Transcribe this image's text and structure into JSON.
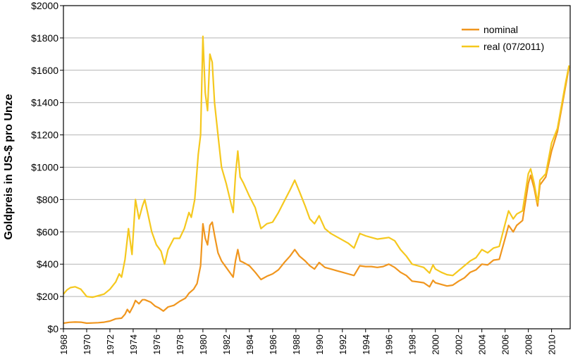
{
  "chart_data": {
    "type": "line",
    "title": "",
    "xlabel": "",
    "ylabel": "Goldpreis in US-$ pro Unze",
    "xlim": [
      1968,
      2011.6
    ],
    "ylim": [
      0,
      2000
    ],
    "grid": true,
    "legend_position": "top-right",
    "y_ticks": [
      {
        "value": 0,
        "label": "$0"
      },
      {
        "value": 200,
        "label": "$200"
      },
      {
        "value": 400,
        "label": "$400"
      },
      {
        "value": 600,
        "label": "$600"
      },
      {
        "value": 800,
        "label": "$800"
      },
      {
        "value": 1000,
        "label": "$1000"
      },
      {
        "value": 1200,
        "label": "$1200"
      },
      {
        "value": 1400,
        "label": "$1400"
      },
      {
        "value": 1600,
        "label": "$1600"
      },
      {
        "value": 1800,
        "label": "$1800"
      },
      {
        "value": 2000,
        "label": "$2000"
      }
    ],
    "x_ticks": [
      {
        "value": 1968,
        "label": "1968"
      },
      {
        "value": 1970,
        "label": "1970"
      },
      {
        "value": 1972,
        "label": "1972"
      },
      {
        "value": 1974,
        "label": "1974"
      },
      {
        "value": 1976,
        "label": "1976"
      },
      {
        "value": 1978,
        "label": "1978"
      },
      {
        "value": 1980,
        "label": "1980"
      },
      {
        "value": 1982,
        "label": "1982"
      },
      {
        "value": 1984,
        "label": "1984"
      },
      {
        "value": 1986,
        "label": "1986"
      },
      {
        "value": 1988,
        "label": "1988"
      },
      {
        "value": 1990,
        "label": "1990"
      },
      {
        "value": 1992,
        "label": "1992"
      },
      {
        "value": 1994,
        "label": "1994"
      },
      {
        "value": 1996,
        "label": "1996"
      },
      {
        "value": 1998,
        "label": "1998"
      },
      {
        "value": 2000,
        "label": "2000"
      },
      {
        "value": 2002,
        "label": "2002"
      },
      {
        "value": 2004,
        "label": "2004"
      },
      {
        "value": 2006,
        "label": "2006"
      },
      {
        "value": 2008,
        "label": "2008"
      },
      {
        "value": 2010,
        "label": "2010"
      }
    ],
    "series": [
      {
        "name": "nominal",
        "color": "#f0961e",
        "points": [
          [
            1968.0,
            35
          ],
          [
            1968.5,
            40
          ],
          [
            1969.0,
            42
          ],
          [
            1969.5,
            41
          ],
          [
            1970.0,
            35
          ],
          [
            1970.5,
            36
          ],
          [
            1971.0,
            38
          ],
          [
            1971.5,
            41
          ],
          [
            1972.0,
            48
          ],
          [
            1972.5,
            62
          ],
          [
            1973.0,
            66
          ],
          [
            1973.3,
            90
          ],
          [
            1973.5,
            120
          ],
          [
            1973.7,
            100
          ],
          [
            1974.0,
            140
          ],
          [
            1974.2,
            175
          ],
          [
            1974.5,
            155
          ],
          [
            1974.8,
            180
          ],
          [
            1975.0,
            180
          ],
          [
            1975.5,
            165
          ],
          [
            1975.9,
            140
          ],
          [
            1976.2,
            130
          ],
          [
            1976.6,
            110
          ],
          [
            1977.0,
            135
          ],
          [
            1977.5,
            145
          ],
          [
            1978.0,
            170
          ],
          [
            1978.5,
            190
          ],
          [
            1978.8,
            220
          ],
          [
            1979.2,
            245
          ],
          [
            1979.5,
            280
          ],
          [
            1979.8,
            390
          ],
          [
            1980.0,
            650
          ],
          [
            1980.2,
            560
          ],
          [
            1980.4,
            520
          ],
          [
            1980.6,
            640
          ],
          [
            1980.8,
            660
          ],
          [
            1981.0,
            580
          ],
          [
            1981.3,
            470
          ],
          [
            1981.6,
            420
          ],
          [
            1982.0,
            380
          ],
          [
            1982.4,
            340
          ],
          [
            1982.6,
            320
          ],
          [
            1982.8,
            420
          ],
          [
            1983.0,
            490
          ],
          [
            1983.2,
            420
          ],
          [
            1983.5,
            410
          ],
          [
            1984.0,
            390
          ],
          [
            1984.5,
            350
          ],
          [
            1985.0,
            305
          ],
          [
            1985.5,
            325
          ],
          [
            1986.0,
            340
          ],
          [
            1986.5,
            365
          ],
          [
            1987.0,
            410
          ],
          [
            1987.5,
            450
          ],
          [
            1987.9,
            490
          ],
          [
            1988.3,
            450
          ],
          [
            1988.8,
            420
          ],
          [
            1989.2,
            390
          ],
          [
            1989.6,
            370
          ],
          [
            1990.0,
            410
          ],
          [
            1990.5,
            380
          ],
          [
            1991.0,
            370
          ],
          [
            1991.5,
            360
          ],
          [
            1992.0,
            350
          ],
          [
            1992.5,
            340
          ],
          [
            1993.0,
            330
          ],
          [
            1993.5,
            390
          ],
          [
            1994.0,
            385
          ],
          [
            1994.5,
            385
          ],
          [
            1995.0,
            380
          ],
          [
            1995.5,
            385
          ],
          [
            1996.0,
            400
          ],
          [
            1996.5,
            380
          ],
          [
            1997.0,
            350
          ],
          [
            1997.5,
            330
          ],
          [
            1998.0,
            295
          ],
          [
            1998.5,
            290
          ],
          [
            1999.0,
            285
          ],
          [
            1999.5,
            260
          ],
          [
            1999.8,
            300
          ],
          [
            2000.0,
            285
          ],
          [
            2000.5,
            275
          ],
          [
            2001.0,
            265
          ],
          [
            2001.5,
            270
          ],
          [
            2002.0,
            295
          ],
          [
            2002.5,
            315
          ],
          [
            2003.0,
            350
          ],
          [
            2003.5,
            365
          ],
          [
            2004.0,
            400
          ],
          [
            2004.5,
            395
          ],
          [
            2005.0,
            425
          ],
          [
            2005.5,
            430
          ],
          [
            2006.0,
            560
          ],
          [
            2006.3,
            640
          ],
          [
            2006.7,
            600
          ],
          [
            2007.0,
            640
          ],
          [
            2007.5,
            670
          ],
          [
            2008.0,
            900
          ],
          [
            2008.2,
            950
          ],
          [
            2008.5,
            870
          ],
          [
            2008.8,
            760
          ],
          [
            2009.0,
            890
          ],
          [
            2009.5,
            940
          ],
          [
            2010.0,
            1100
          ],
          [
            2010.5,
            1220
          ],
          [
            2010.9,
            1380
          ],
          [
            2011.2,
            1500
          ],
          [
            2011.5,
            1620
          ]
        ]
      },
      {
        "name": "real (07/2011)",
        "color": "#f5c81e",
        "points": [
          [
            1968.0,
            215
          ],
          [
            1968.3,
            240
          ],
          [
            1968.6,
            255
          ],
          [
            1969.0,
            260
          ],
          [
            1969.5,
            245
          ],
          [
            1970.0,
            200
          ],
          [
            1970.5,
            195
          ],
          [
            1971.0,
            205
          ],
          [
            1971.5,
            215
          ],
          [
            1972.0,
            245
          ],
          [
            1972.5,
            290
          ],
          [
            1972.8,
            340
          ],
          [
            1973.0,
            320
          ],
          [
            1973.3,
            430
          ],
          [
            1973.6,
            620
          ],
          [
            1973.9,
            460
          ],
          [
            1974.2,
            800
          ],
          [
            1974.5,
            680
          ],
          [
            1974.8,
            760
          ],
          [
            1975.0,
            800
          ],
          [
            1975.3,
            700
          ],
          [
            1975.6,
            600
          ],
          [
            1976.0,
            520
          ],
          [
            1976.4,
            480
          ],
          [
            1976.7,
            400
          ],
          [
            1977.0,
            490
          ],
          [
            1977.5,
            560
          ],
          [
            1978.0,
            560
          ],
          [
            1978.4,
            620
          ],
          [
            1978.8,
            720
          ],
          [
            1979.0,
            690
          ],
          [
            1979.3,
            800
          ],
          [
            1979.6,
            1080
          ],
          [
            1979.8,
            1200
          ],
          [
            1980.0,
            1810
          ],
          [
            1980.2,
            1460
          ],
          [
            1980.4,
            1350
          ],
          [
            1980.6,
            1700
          ],
          [
            1980.8,
            1650
          ],
          [
            1981.0,
            1400
          ],
          [
            1981.3,
            1200
          ],
          [
            1981.6,
            1000
          ],
          [
            1982.0,
            900
          ],
          [
            1982.4,
            780
          ],
          [
            1982.6,
            720
          ],
          [
            1982.8,
            950
          ],
          [
            1983.0,
            1100
          ],
          [
            1983.2,
            940
          ],
          [
            1983.5,
            900
          ],
          [
            1984.0,
            820
          ],
          [
            1984.5,
            750
          ],
          [
            1985.0,
            620
          ],
          [
            1985.5,
            650
          ],
          [
            1986.0,
            660
          ],
          [
            1986.5,
            720
          ],
          [
            1987.0,
            790
          ],
          [
            1987.5,
            860
          ],
          [
            1987.9,
            920
          ],
          [
            1988.3,
            850
          ],
          [
            1988.8,
            760
          ],
          [
            1989.2,
            680
          ],
          [
            1989.6,
            650
          ],
          [
            1990.0,
            700
          ],
          [
            1990.5,
            620
          ],
          [
            1991.0,
            590
          ],
          [
            1991.5,
            570
          ],
          [
            1992.0,
            550
          ],
          [
            1992.5,
            530
          ],
          [
            1993.0,
            500
          ],
          [
            1993.5,
            590
          ],
          [
            1994.0,
            575
          ],
          [
            1994.5,
            565
          ],
          [
            1995.0,
            555
          ],
          [
            1995.5,
            560
          ],
          [
            1996.0,
            565
          ],
          [
            1996.5,
            545
          ],
          [
            1997.0,
            490
          ],
          [
            1997.5,
            450
          ],
          [
            1998.0,
            400
          ],
          [
            1998.5,
            390
          ],
          [
            1999.0,
            380
          ],
          [
            1999.5,
            345
          ],
          [
            1999.8,
            395
          ],
          [
            2000.0,
            370
          ],
          [
            2000.5,
            350
          ],
          [
            2001.0,
            335
          ],
          [
            2001.5,
            330
          ],
          [
            2002.0,
            360
          ],
          [
            2002.5,
            390
          ],
          [
            2003.0,
            420
          ],
          [
            2003.5,
            440
          ],
          [
            2004.0,
            490
          ],
          [
            2004.5,
            470
          ],
          [
            2005.0,
            500
          ],
          [
            2005.5,
            510
          ],
          [
            2006.0,
            650
          ],
          [
            2006.3,
            730
          ],
          [
            2006.7,
            680
          ],
          [
            2007.0,
            710
          ],
          [
            2007.5,
            730
          ],
          [
            2008.0,
            960
          ],
          [
            2008.2,
            990
          ],
          [
            2008.5,
            900
          ],
          [
            2008.8,
            780
          ],
          [
            2009.0,
            920
          ],
          [
            2009.5,
            960
          ],
          [
            2010.0,
            1150
          ],
          [
            2010.5,
            1240
          ],
          [
            2010.9,
            1400
          ],
          [
            2011.2,
            1520
          ],
          [
            2011.5,
            1630
          ]
        ]
      }
    ]
  }
}
